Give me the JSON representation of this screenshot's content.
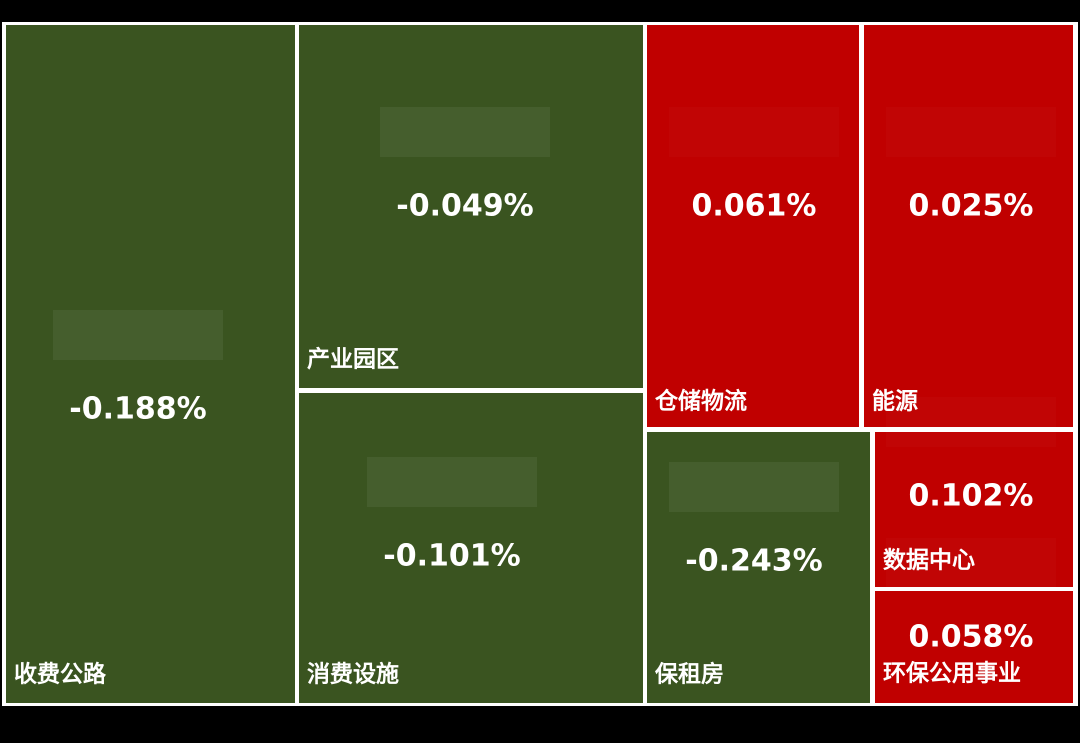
{
  "chart_data": {
    "type": "treemap",
    "categories": [
      "收费公路",
      "产业园区",
      "消费设施",
      "仓储物流",
      "能源",
      "保租房",
      "数据中心",
      "环保公用事业"
    ],
    "values": [
      -0.188,
      -0.049,
      -0.101,
      0.061,
      0.025,
      -0.243,
      0.102,
      0.058
    ],
    "value_labels": [
      "-0.188%",
      "-0.049%",
      "-0.101%",
      "0.061%",
      "0.025%",
      "-0.243%",
      "0.102%",
      "0.058%"
    ],
    "colors": {
      "negative": "#3a5420",
      "positive": "#c00000"
    }
  }
}
